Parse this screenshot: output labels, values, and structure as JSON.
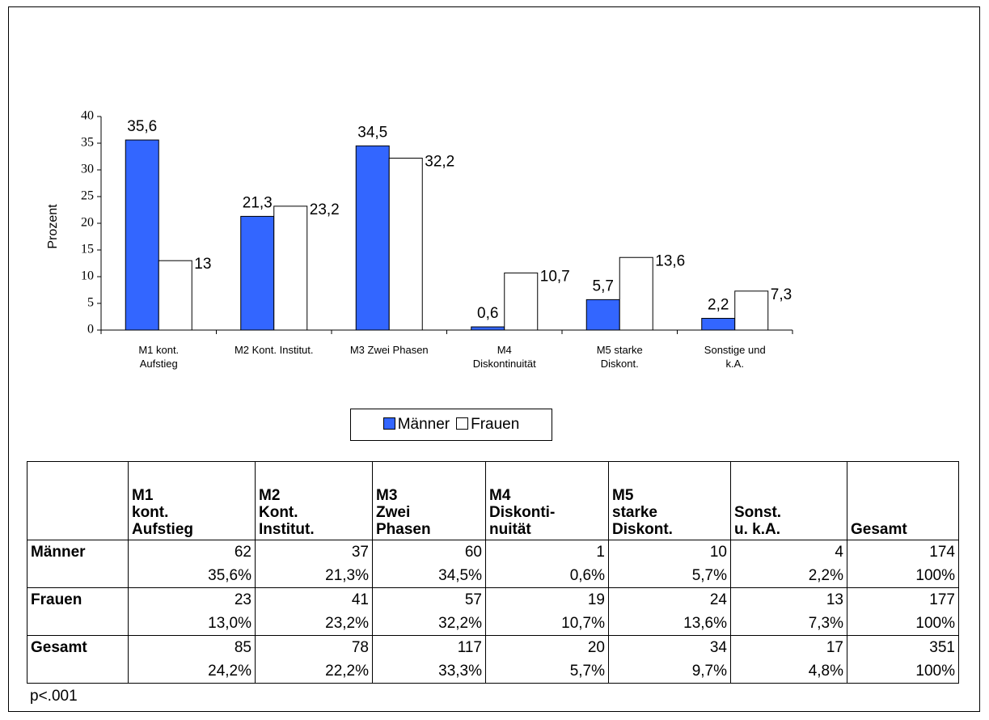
{
  "chart_data": {
    "type": "bar",
    "y_label": "Prozent",
    "categories": [
      "M1 kont.\nAufstieg",
      "M2 Kont. Institut.",
      "M3 Zwei Phasen",
      "M4\nDiskontinuität",
      "M5 starke\nDiskont.",
      "Sonstige und\nk.A."
    ],
    "series": [
      {
        "name": "Männer",
        "color": "#3366ff",
        "values": [
          35.6,
          21.3,
          34.5,
          0.6,
          5.7,
          2.2
        ],
        "value_labels": [
          "35,6",
          "21,3",
          "34,5",
          "0,6",
          "5,7",
          "2,2"
        ]
      },
      {
        "name": "Frauen",
        "color": "#ffffff",
        "values": [
          13,
          23.2,
          32.2,
          10.7,
          13.6,
          7.3
        ],
        "value_labels": [
          "13",
          "23,2",
          "32,2",
          "10,7",
          "13,6",
          "7,3"
        ]
      }
    ],
    "ylim": [
      0,
      40
    ],
    "yticks": [
      0,
      5,
      10,
      15,
      20,
      25,
      30,
      35,
      40
    ],
    "grid": false,
    "legend": "bottom"
  },
  "table": {
    "header": [
      "M1\nkont.\nAufstieg",
      "M2\nKont.\nInstitut.",
      "M3\nZwei\nPhasen",
      "M4\nDiskonti-\nnuität",
      "M5\nstarke\nDiskont.",
      "Sonst.\nu. k.A.",
      "Gesamt"
    ],
    "rows": [
      {
        "label": "Männer",
        "counts": [
          62,
          37,
          60,
          1,
          10,
          4,
          174
        ],
        "percents": [
          "35,6%",
          "21,3%",
          "34,5%",
          "0,6%",
          "5,7%",
          "2,2%",
          "100%"
        ]
      },
      {
        "label": "Frauen",
        "counts": [
          23,
          41,
          57,
          19,
          24,
          13,
          177
        ],
        "percents": [
          "13,0%",
          "23,2%",
          "32,2%",
          "10,7%",
          "13,6%",
          "7,3%",
          "100%"
        ]
      },
      {
        "label": "Gesamt",
        "counts": [
          85,
          78,
          117,
          20,
          34,
          17,
          351
        ],
        "percents": [
          "24,2%",
          "22,2%",
          "33,3%",
          "5,7%",
          "9,7%",
          "4,8%",
          "100%"
        ]
      }
    ],
    "note": "p<.001"
  }
}
